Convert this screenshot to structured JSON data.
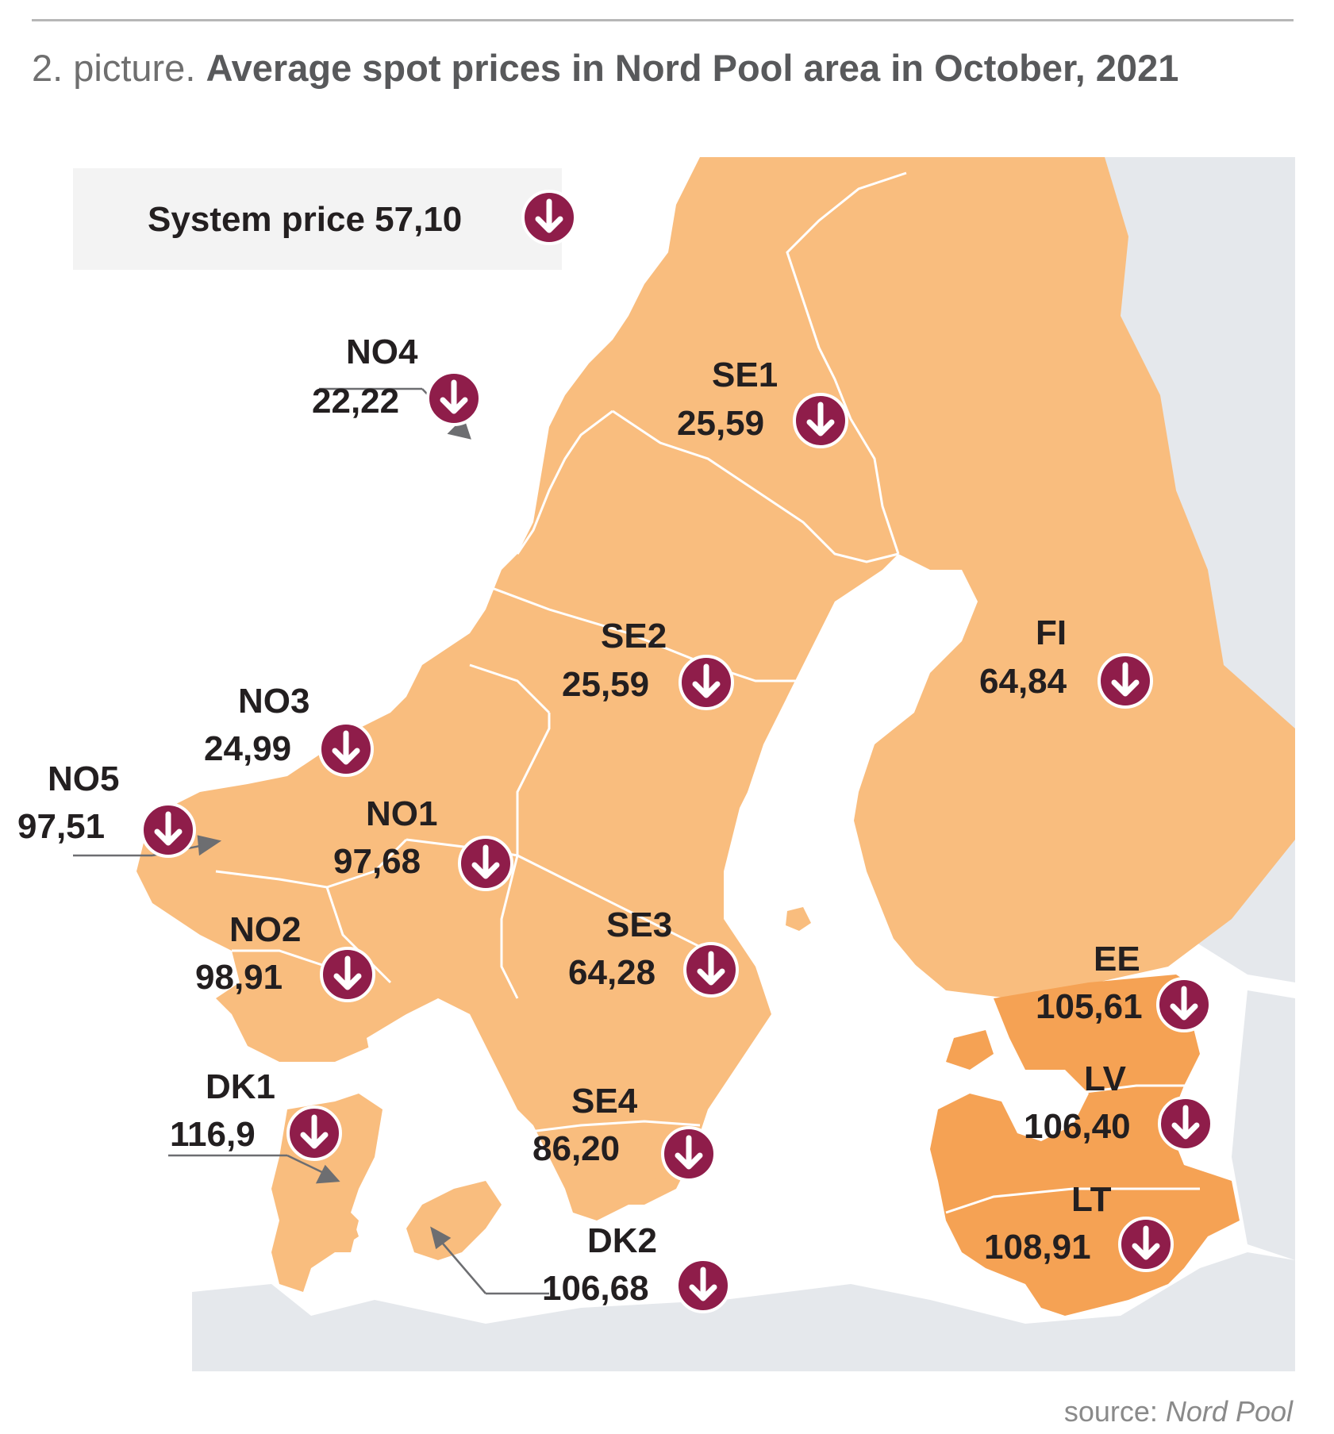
{
  "header": {
    "prefix": "2. picture.",
    "title": "Average spot prices in Nord Pool area in October, 2021"
  },
  "system": {
    "label": "System price 57,10",
    "trend": "down"
  },
  "zones": [
    {
      "id": "NO4",
      "label": "NO4",
      "price": "22,22",
      "trend": "down"
    },
    {
      "id": "SE1",
      "label": "SE1",
      "price": "25,59",
      "trend": "down"
    },
    {
      "id": "SE2",
      "label": "SE2",
      "price": "25,59",
      "trend": "down"
    },
    {
      "id": "FI",
      "label": "FI",
      "price": "64,84",
      "trend": "down"
    },
    {
      "id": "NO3",
      "label": "NO3",
      "price": "24,99",
      "trend": "down"
    },
    {
      "id": "NO5",
      "label": "NO5",
      "price": "97,51",
      "trend": "down"
    },
    {
      "id": "NO1",
      "label": "NO1",
      "price": "97,68",
      "trend": "down"
    },
    {
      "id": "NO2",
      "label": "NO2",
      "price": "98,91",
      "trend": "down"
    },
    {
      "id": "SE3",
      "label": "SE3",
      "price": "64,28",
      "trend": "down"
    },
    {
      "id": "EE",
      "label": "EE",
      "price": "105,61",
      "trend": "down"
    },
    {
      "id": "DK1",
      "label": "DK1",
      "price": "116,9",
      "trend": "down"
    },
    {
      "id": "SE4",
      "label": "SE4",
      "price": "86,20",
      "trend": "down"
    },
    {
      "id": "LV",
      "label": "LV",
      "price": "106,40",
      "trend": "down"
    },
    {
      "id": "LT",
      "label": "LT",
      "price": "108,91",
      "trend": "down"
    },
    {
      "id": "DK2",
      "label": "DK2",
      "price": "106,68",
      "trend": "down"
    }
  ],
  "source": {
    "prefix": "source:",
    "name": "Nord Pool"
  },
  "colors": {
    "nordic_fill": "#f9bd7e",
    "baltic_fill": "#f5a254",
    "water": "#ffffff",
    "land_other": "#e5e8ec",
    "arrow_badge": "#8f1d4a",
    "border": "#ffffff",
    "text": "#231f20",
    "pointer": "#6d6e71"
  },
  "icons": {
    "trend_down": "down-arrow-circle-icon",
    "pointer": "pointer-arrow-icon"
  }
}
